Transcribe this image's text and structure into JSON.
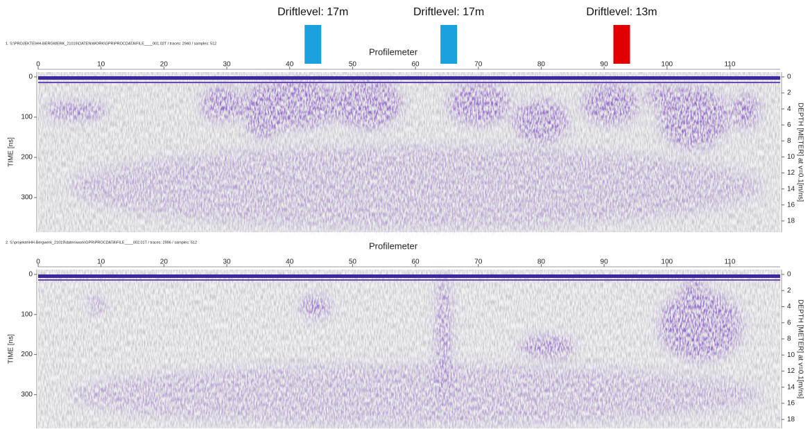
{
  "markers": [
    {
      "label": "Driftlevel: 17m",
      "position": 43.7,
      "color": "#1ba1dc"
    },
    {
      "label": "Driftlevel: 17m",
      "position": 65.3,
      "color": "#1ba1dc"
    },
    {
      "label": "Driftlevel: 13m",
      "position": 92.8,
      "color": "#e00000"
    }
  ],
  "panels": [
    {
      "header": "1. S:\\PROJEKTE\\HH-BERGWERK_21019\\DATEN\\WORK\\GPR\\PROCDATA\\FILE____001.02T / traces: 2940 / samples: 512",
      "x_title": "Profilemeter",
      "y_title": "TIME [ns]",
      "y2_title": "DEPTH [METER] at v=0.1[m/ns]",
      "xlim": [
        0,
        118
      ],
      "xticks": [
        0,
        10,
        20,
        30,
        40,
        50,
        60,
        70,
        80,
        90,
        100,
        110
      ],
      "ylim": [
        -12,
        386
      ],
      "yticks": [
        0,
        100,
        200,
        300
      ],
      "y2lim": [
        -0.6,
        19.4
      ],
      "y2ticks": [
        0,
        2,
        4,
        6,
        8,
        10,
        12,
        14,
        16,
        18
      ]
    },
    {
      "header": "2. S:\\projekte\\HH-Bergwerk_21019\\daten\\work\\GPR\\PROCDATA\\FILE____002.01T / traces: 2996 / samples: 512",
      "x_title": "Profilemeter",
      "y_title": "TIME [ns]",
      "y2_title": "DEPTH [METER] at v=0.1[m/ns]",
      "xlim": [
        0,
        118
      ],
      "xticks": [
        0,
        10,
        20,
        30,
        40,
        50,
        60,
        70,
        80,
        90,
        100,
        110
      ],
      "ylim": [
        -12,
        384
      ],
      "yticks": [
        0,
        100,
        200,
        300
      ],
      "y2lim": [
        -0.6,
        19.1
      ],
      "y2ticks": [
        0,
        2,
        4,
        6,
        8,
        10,
        12,
        14,
        16,
        18
      ]
    }
  ]
}
